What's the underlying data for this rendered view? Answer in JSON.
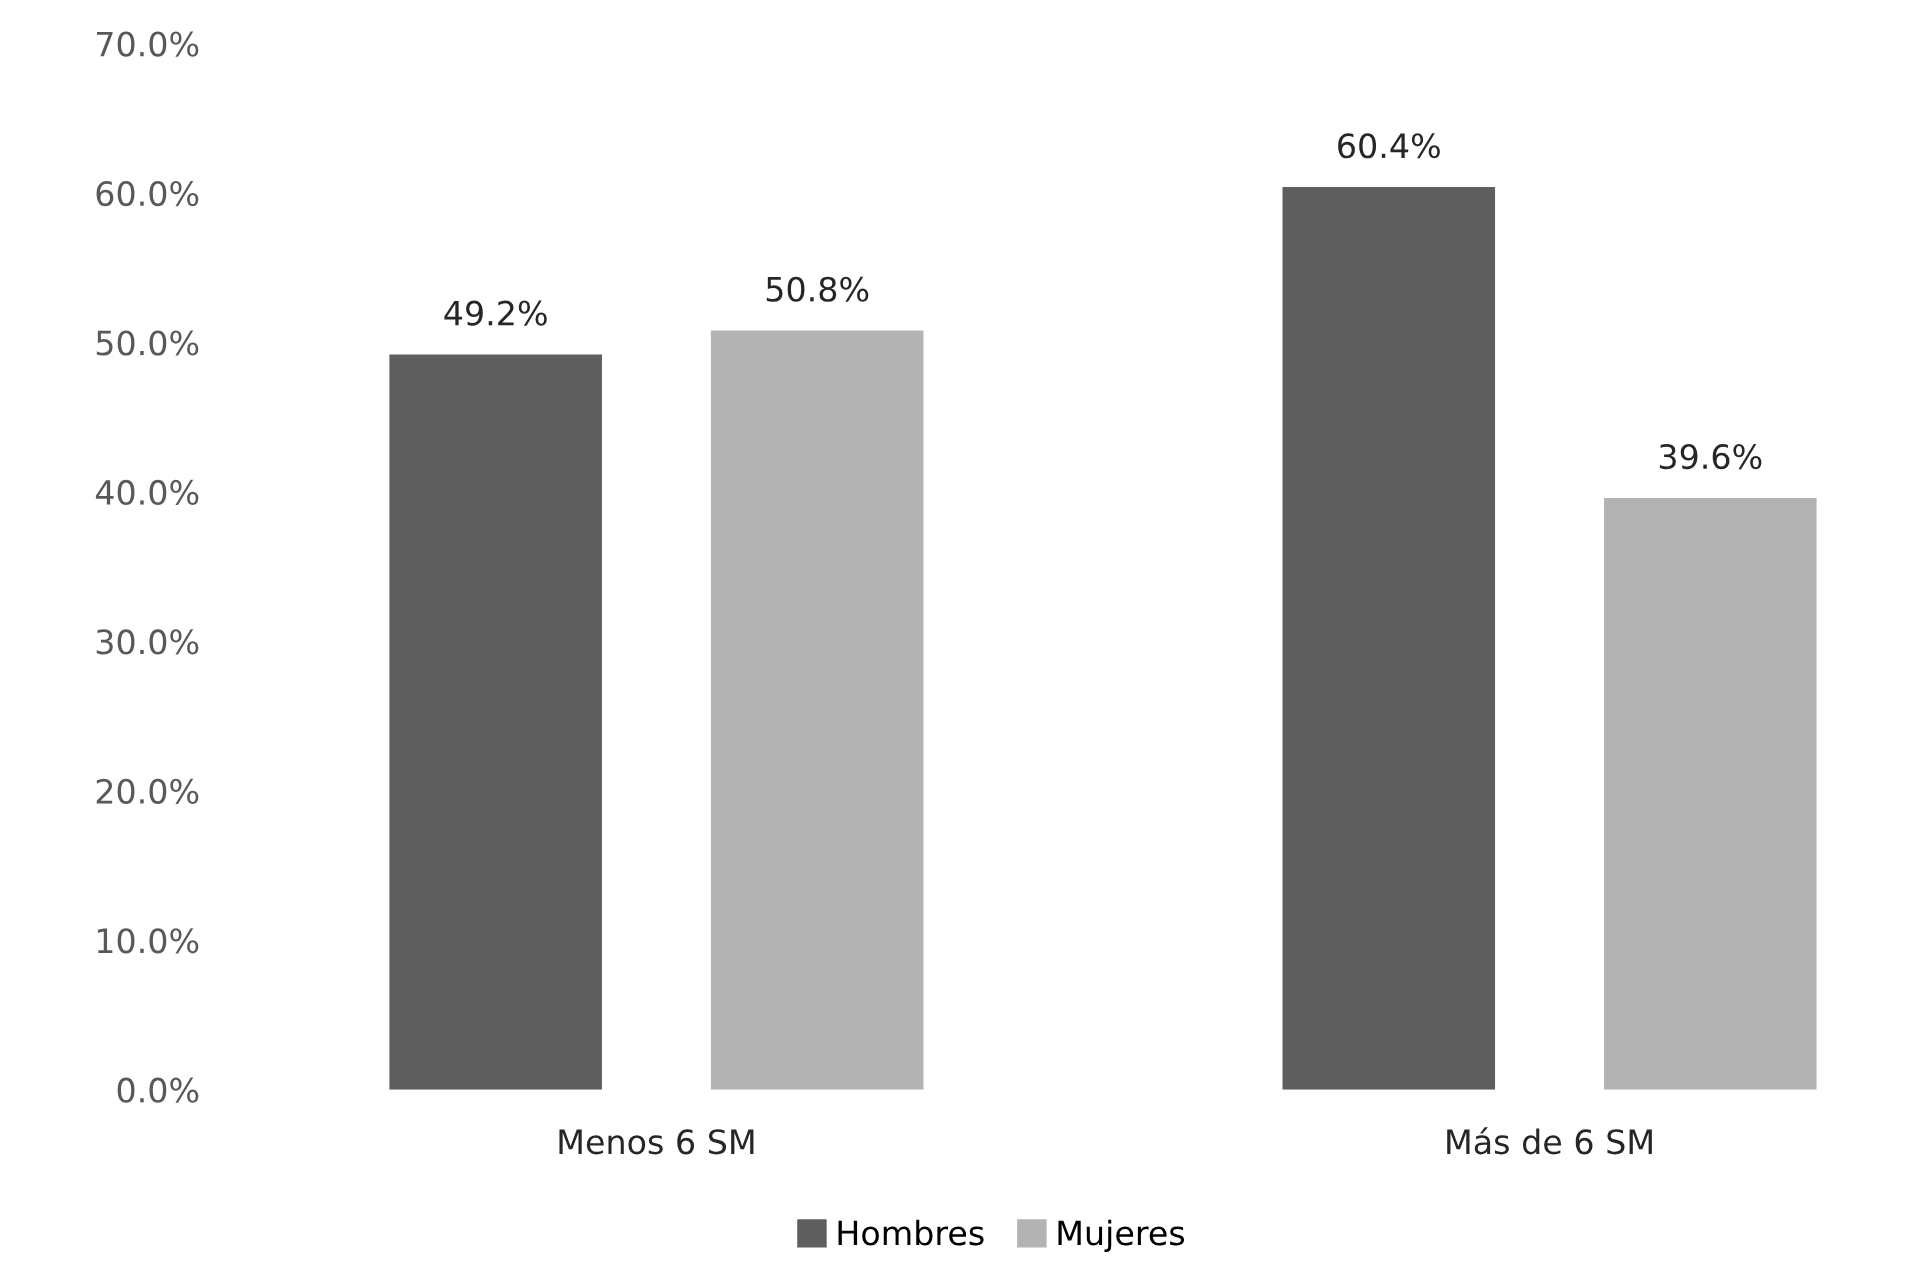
{
  "chart_data": {
    "type": "bar",
    "categories": [
      "Menos 6 SM",
      "Más de 6 SM"
    ],
    "series": [
      {
        "name": "Hombres",
        "color": "#5f5f5f",
        "values": [
          49.2,
          60.4
        ],
        "value_labels": [
          "49.2%",
          "60.4%"
        ]
      },
      {
        "name": "Mujeres",
        "color": "#b3b3b3",
        "values": [
          50.8,
          39.6
        ],
        "value_labels": [
          "50.8%",
          "39.6%"
        ]
      }
    ],
    "ylim": [
      0,
      70
    ],
    "yticks": [
      {
        "value": 0,
        "label": "0.0%"
      },
      {
        "value": 10,
        "label": "10.0%"
      },
      {
        "value": 20,
        "label": "20.0%"
      },
      {
        "value": 30,
        "label": "30.0%"
      },
      {
        "value": 40,
        "label": "40.0%"
      },
      {
        "value": 50,
        "label": "50.0%"
      },
      {
        "value": 60,
        "label": "60.0%"
      },
      {
        "value": 70,
        "label": "70.0%"
      }
    ],
    "grid": false,
    "legend": "bottom"
  }
}
